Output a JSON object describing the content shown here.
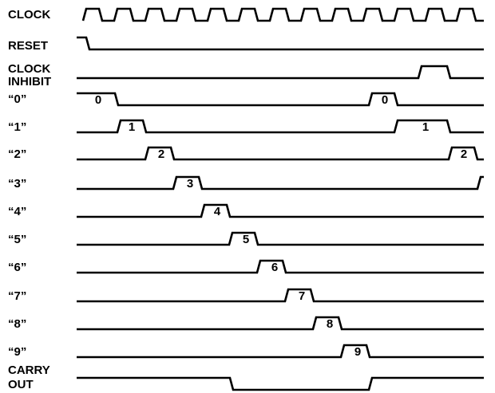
{
  "colors": {
    "line": "#000000",
    "background": "#ffffff"
  },
  "signals": [
    {
      "id": "clock",
      "label_lines": [
        "CLOCK"
      ],
      "pulse_labels": []
    },
    {
      "id": "reset",
      "label_lines": [
        "RESET"
      ],
      "pulse_labels": []
    },
    {
      "id": "clock-inhibit",
      "label_lines": [
        "CLOCK",
        "INHIBIT"
      ],
      "pulse_labels": []
    },
    {
      "id": "out-0",
      "label_lines": [
        "“0”"
      ],
      "pulse_labels": [
        "0",
        "0"
      ]
    },
    {
      "id": "out-1",
      "label_lines": [
        "“1”"
      ],
      "pulse_labels": [
        "1",
        "1"
      ]
    },
    {
      "id": "out-2",
      "label_lines": [
        "“2”"
      ],
      "pulse_labels": [
        "2",
        "2"
      ]
    },
    {
      "id": "out-3",
      "label_lines": [
        "“3”"
      ],
      "pulse_labels": [
        "3"
      ]
    },
    {
      "id": "out-4",
      "label_lines": [
        "“4”"
      ],
      "pulse_labels": [
        "4"
      ]
    },
    {
      "id": "out-5",
      "label_lines": [
        "“5”"
      ],
      "pulse_labels": [
        "5"
      ]
    },
    {
      "id": "out-6",
      "label_lines": [
        "“6”"
      ],
      "pulse_labels": [
        "6"
      ]
    },
    {
      "id": "out-7",
      "label_lines": [
        "“7”"
      ],
      "pulse_labels": [
        "7"
      ]
    },
    {
      "id": "out-8",
      "label_lines": [
        "“8”"
      ],
      "pulse_labels": [
        "8"
      ]
    },
    {
      "id": "out-9",
      "label_lines": [
        "“9”"
      ],
      "pulse_labels": [
        "9"
      ]
    },
    {
      "id": "carry-out",
      "label_lines": [
        "CARRY",
        "OUT"
      ],
      "pulse_labels": []
    }
  ]
}
